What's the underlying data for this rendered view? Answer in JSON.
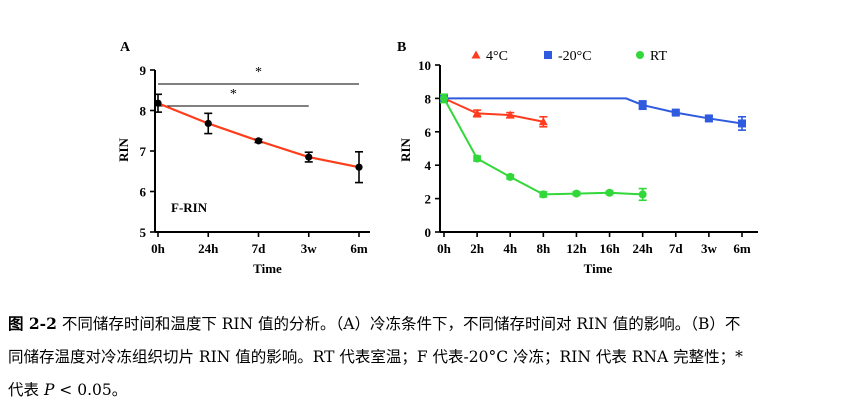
{
  "chart_data": [
    {
      "panel": "A",
      "type": "line",
      "xlabel": "Time",
      "ylabel": "RIN",
      "categories": [
        "0h",
        "24h",
        "7d",
        "3w",
        "6m"
      ],
      "ylim": [
        5,
        9
      ],
      "yticks": [
        "5",
        "6",
        "7",
        "8",
        "9"
      ],
      "series": [
        {
          "name": "F-RIN",
          "color": "#ff3d1a",
          "values": [
            8.18,
            7.68,
            7.25,
            6.85,
            6.6
          ],
          "errors": [
            0.22,
            0.25,
            0.04,
            0.12,
            0.38
          ]
        }
      ],
      "annotation": "F-RIN",
      "significance": [
        {
          "label": "*",
          "from": "0h",
          "to": "6m"
        },
        {
          "label": "*",
          "from": "0h",
          "to": "3w"
        }
      ]
    },
    {
      "panel": "B",
      "type": "line",
      "xlabel": "Time",
      "ylabel": "RIN",
      "categories": [
        "0h",
        "2h",
        "4h",
        "8h",
        "12h",
        "16h",
        "24h",
        "7d",
        "3w",
        "6m"
      ],
      "ylim": [
        0,
        10
      ],
      "yticks": [
        "0",
        "2",
        "4",
        "6",
        "8",
        "10"
      ],
      "legend_position": "top",
      "series": [
        {
          "name": "4°C",
          "marker": "triangle",
          "color": "#ff3b1f",
          "values": [
            8.0,
            7.1,
            7.0,
            6.6,
            null,
            null,
            null,
            null,
            null,
            null
          ],
          "errors": [
            0.15,
            0.2,
            0.15,
            0.3,
            null,
            null,
            null,
            null,
            null,
            null
          ]
        },
        {
          "name": "-20°C",
          "marker": "square",
          "color": "#2f5bde",
          "values": [
            8.0,
            null,
            null,
            null,
            null,
            null,
            7.6,
            7.15,
            6.8,
            6.5
          ],
          "errors": [
            0.15,
            null,
            null,
            null,
            null,
            null,
            0.25,
            0.1,
            0.15,
            0.4
          ],
          "line_path": [
            [
              0,
              8.0
            ],
            [
              5.5,
              8.0
            ],
            [
              6,
              7.6
            ],
            [
              7,
              7.15
            ],
            [
              8,
              6.8
            ],
            [
              9,
              6.5
            ]
          ]
        },
        {
          "name": "RT",
          "marker": "circle",
          "color": "#32d83a",
          "values": [
            8.0,
            4.4,
            3.3,
            2.25,
            2.3,
            2.35,
            2.25,
            null,
            null,
            null
          ],
          "errors": [
            0.25,
            0.15,
            0.12,
            0.15,
            0.1,
            0.1,
            0.35,
            null,
            null,
            null
          ]
        }
      ]
    }
  ],
  "caption": {
    "figure_label": "图 2-2",
    "line1_rest": " 不同储存时间和温度下 RIN 值的分析。（A）冷冻条件下，不同储存时间对 RIN 值的影响。（B）不",
    "line2": "同储存温度对冷冻组织切片 RIN 值的影响。RT 代表室温；F 代表-20°C 冷冻；RIN 代表 RNA 完整性；*",
    "line3_prefix": "代表 ",
    "p_symbol": "P",
    "line3_suffix": " < 0.05。"
  }
}
